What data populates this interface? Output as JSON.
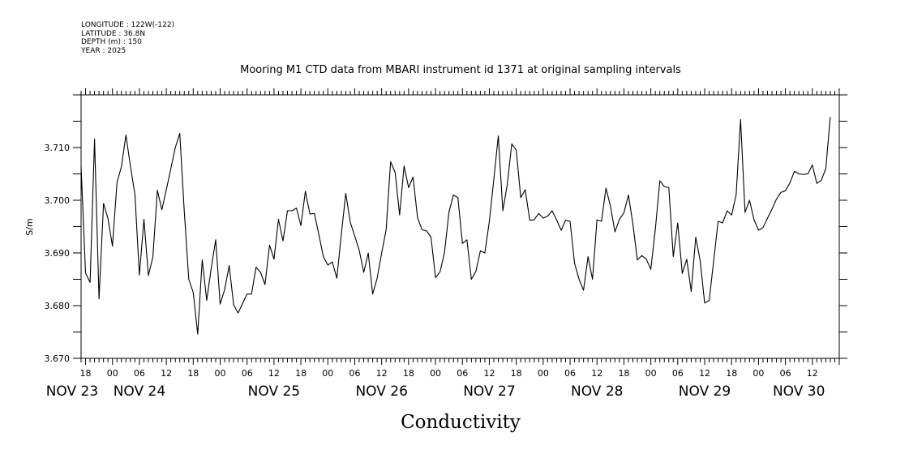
{
  "meta": {
    "longitude": "LONGITUDE : 122W(-122)",
    "latitude": "LATITUDE : 36.8N",
    "depth": "DEPTH (m) : 150",
    "year": "YEAR : 2025"
  },
  "chart_data": {
    "type": "line",
    "title": "Mooring M1 CTD data from MBARI instrument id 1371 at original sampling intervals",
    "xlabel": "Conductivity",
    "ylabel": "S/m",
    "ylim": [
      3.67,
      3.72
    ],
    "yticks": [
      "3.670",
      "3.680",
      "3.690",
      "3.700",
      "3.710"
    ],
    "xlim": [
      -7,
      162
    ],
    "grid": false,
    "hour_ticks": [
      {
        "t": -6,
        "label": "18"
      },
      {
        "t": 0,
        "label": "00"
      },
      {
        "t": 6,
        "label": "06"
      },
      {
        "t": 12,
        "label": "12"
      },
      {
        "t": 18,
        "label": "18"
      },
      {
        "t": 24,
        "label": "00"
      },
      {
        "t": 30,
        "label": "06"
      },
      {
        "t": 36,
        "label": "12"
      },
      {
        "t": 42,
        "label": "18"
      },
      {
        "t": 48,
        "label": "00"
      },
      {
        "t": 54,
        "label": "06"
      },
      {
        "t": 60,
        "label": "12"
      },
      {
        "t": 66,
        "label": "18"
      },
      {
        "t": 72,
        "label": "00"
      },
      {
        "t": 78,
        "label": "06"
      },
      {
        "t": 84,
        "label": "12"
      },
      {
        "t": 90,
        "label": "18"
      },
      {
        "t": 96,
        "label": "00"
      },
      {
        "t": 102,
        "label": "06"
      },
      {
        "t": 108,
        "label": "12"
      },
      {
        "t": 114,
        "label": "18"
      },
      {
        "t": 120,
        "label": "00"
      },
      {
        "t": 126,
        "label": "06"
      },
      {
        "t": 132,
        "label": "12"
      },
      {
        "t": 138,
        "label": "18"
      },
      {
        "t": 144,
        "label": "00"
      },
      {
        "t": 150,
        "label": "06"
      },
      {
        "t": 156,
        "label": "12"
      }
    ],
    "day_labels": [
      {
        "t": -9,
        "label": "NOV 23"
      },
      {
        "t": 6,
        "label": "NOV 24"
      },
      {
        "t": 36,
        "label": "NOV 25"
      },
      {
        "t": 60,
        "label": "NOV 26"
      },
      {
        "t": 84,
        "label": "NOV 27"
      },
      {
        "t": 108,
        "label": "NOV 28"
      },
      {
        "t": 132,
        "label": "NOV 29"
      },
      {
        "t": 153,
        "label": "NOV 30"
      }
    ],
    "series": [
      {
        "x": [
          -7.0,
          -6.0,
          -5.0,
          -4.0,
          -3.0,
          -2.0,
          -1.0,
          0.0,
          1.0,
          2.0,
          3.0,
          4.0,
          5.0,
          6.0,
          7.0,
          8.0,
          9.0,
          10.0,
          11.0,
          12.0,
          13.0,
          14.0,
          15.0,
          16.0,
          17.0,
          18.0,
          19.0,
          20.0,
          21.0,
          22.0,
          23.0,
          24.0,
          25.0,
          26.0,
          27.0,
          28.0,
          29.0,
          30.0,
          31.0,
          32.0,
          33.0,
          34.0,
          35.0,
          36.0,
          37.0,
          38.0,
          39.0,
          40.0,
          41.0,
          42.0,
          43.0,
          44.0,
          45.0,
          46.0,
          47.0,
          48.0,
          49.0,
          50.0,
          51.0,
          52.0,
          53.0,
          54.0,
          55.0,
          56.0,
          57.0,
          58.0,
          59.0,
          60.0,
          61.0,
          62.0,
          63.0,
          64.0,
          65.0,
          66.0,
          67.0,
          68.0,
          69.0,
          70.0,
          71.0,
          72.0,
          73.0,
          74.0,
          75.0,
          76.0,
          77.0,
          78.0,
          79.0,
          80.0,
          81.0,
          82.0,
          83.0,
          84.0,
          85.0,
          86.0,
          87.0,
          88.0,
          89.0,
          90.0,
          91.0,
          92.0,
          93.0,
          94.0,
          95.0,
          96.0,
          97.0,
          98.0,
          99.0,
          100.0,
          101.0,
          102.0,
          103.0,
          104.0,
          105.0,
          106.0,
          107.0,
          108.0,
          109.0,
          110.0,
          111.0,
          112.0,
          113.0,
          114.0,
          115.0,
          116.0,
          117.0,
          118.0,
          119.0,
          120.0,
          121.0,
          122.0,
          123.0,
          124.0,
          125.0,
          126.0,
          127.0,
          128.0,
          129.0,
          130.0,
          131.0,
          132.0,
          133.0,
          134.0,
          135.0,
          136.0,
          137.0,
          138.0,
          139.0,
          140.0,
          141.0,
          142.0,
          143.0,
          144.0,
          145.0,
          146.0,
          147.0,
          148.0,
          149.0,
          150.0,
          151.0,
          152.0,
          153.0,
          154.0,
          155.0,
          156.0,
          157.0,
          158.0,
          159.0,
          160.0
        ],
        "y": [
          3.7064,
          3.6862,
          3.6844,
          3.7116,
          3.6813,
          3.6994,
          3.6965,
          3.6913,
          3.7034,
          3.7064,
          3.7124,
          3.7064,
          3.7011,
          3.6858,
          3.6964,
          3.6857,
          3.6892,
          3.7019,
          3.6982,
          3.702,
          3.706,
          3.71,
          3.7127,
          3.698,
          3.685,
          3.6825,
          3.6746,
          3.6887,
          3.681,
          3.687,
          3.6925,
          3.6803,
          3.683,
          3.6876,
          3.6802,
          3.6786,
          3.6804,
          3.6822,
          3.6822,
          3.6873,
          3.6863,
          3.684,
          3.6915,
          3.6888,
          3.6964,
          3.6923,
          3.698,
          3.698,
          3.6985,
          3.6952,
          3.7017,
          3.6974,
          3.6975,
          3.6935,
          3.6893,
          3.6877,
          3.6883,
          3.6852,
          3.6935,
          3.7013,
          3.6958,
          3.6932,
          3.6905,
          3.6863,
          3.69,
          3.6822,
          3.6852,
          3.69,
          3.6944,
          3.7073,
          3.7053,
          3.6972,
          3.7065,
          3.7024,
          3.7044,
          3.6967,
          3.6944,
          3.6942,
          3.693,
          3.6853,
          3.6864,
          3.69,
          3.6978,
          3.701,
          3.7005,
          3.6918,
          3.6925,
          3.685,
          3.6865,
          3.6904,
          3.69,
          3.696,
          3.704,
          3.7122,
          3.698,
          3.703,
          3.7107,
          3.7095,
          3.7005,
          3.702,
          3.6962,
          3.6963,
          3.6975,
          3.6966,
          3.697,
          3.698,
          3.6963,
          3.6943,
          3.6962,
          3.696,
          3.688,
          3.685,
          3.6829,
          3.6893,
          3.685,
          3.6963,
          3.696,
          3.7023,
          3.6989,
          3.694,
          3.6964,
          3.6976,
          3.701,
          3.6955,
          3.6887,
          3.6895,
          3.6888,
          3.6869,
          3.6945,
          3.7037,
          3.7026,
          3.7024,
          3.6893,
          3.6957,
          3.6861,
          3.6888,
          3.6827,
          3.693,
          3.6885,
          3.6805,
          3.681,
          3.6885,
          3.696,
          3.6957,
          3.698,
          3.6972,
          3.701,
          3.7153,
          3.6977,
          3.7,
          3.6963,
          3.6943,
          3.6948,
          3.6966,
          3.6983,
          3.7002,
          3.7015,
          3.7018,
          3.7033,
          3.7055,
          3.705,
          3.7049,
          3.705,
          3.7067,
          3.7032,
          3.7038,
          3.706,
          3.7158
        ]
      }
    ]
  }
}
